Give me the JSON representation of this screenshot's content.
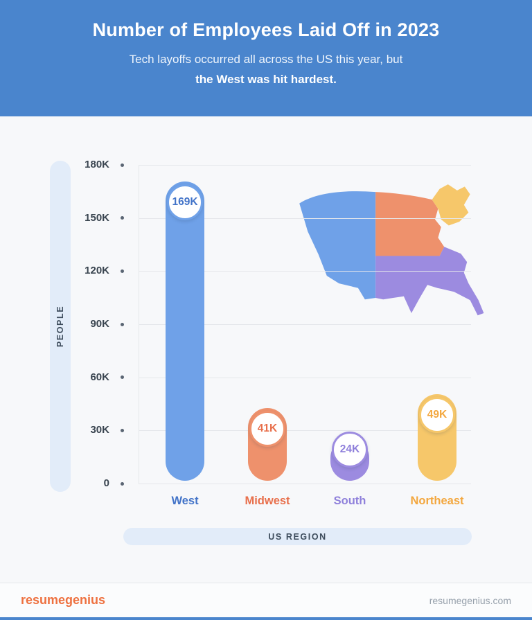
{
  "header": {
    "title": "Number of Employees Laid Off in 2023",
    "subtitle_line1": "Tech layoffs occurred all across the US this year, but",
    "subtitle_line2": "the West was hit hardest."
  },
  "chart_data": {
    "type": "bar",
    "title": "Number of Employees Laid Off in 2023",
    "categories": [
      "West",
      "Midwest",
      "South",
      "Northeast"
    ],
    "values": [
      169000,
      41000,
      24000,
      49000
    ],
    "value_labels": [
      "169K",
      "41K",
      "24K",
      "49K"
    ],
    "xlabel": "US REGION",
    "ylabel": "PEOPLE",
    "ylim": [
      0,
      180000
    ],
    "ytick_labels": [
      "0",
      "30K",
      "60K",
      "90K",
      "120K",
      "150K",
      "180K"
    ],
    "grid": true,
    "legend": "none",
    "colors": {
      "West": "#6FA1E8",
      "Midwest": "#EE916C",
      "South": "#9C8BE0",
      "Northeast": "#F6C76A"
    },
    "label_colors": {
      "West": "#4273C8",
      "Midwest": "#E86F4B",
      "South": "#8F80DB",
      "Northeast": "#F3A73E"
    }
  },
  "map": {
    "regions": [
      "West",
      "Midwest",
      "South",
      "Northeast"
    ]
  },
  "footer": {
    "brand_resume": "resume",
    "brand_genius": "genius",
    "site": "resumegenius.com"
  },
  "theme": {
    "header_bg": "#4A85CD",
    "page_bg": "#F7F8FA",
    "pill_bg": "#E2ECF9",
    "grid_color": "#E5E7EB",
    "brand_orange": "#EE7140"
  }
}
